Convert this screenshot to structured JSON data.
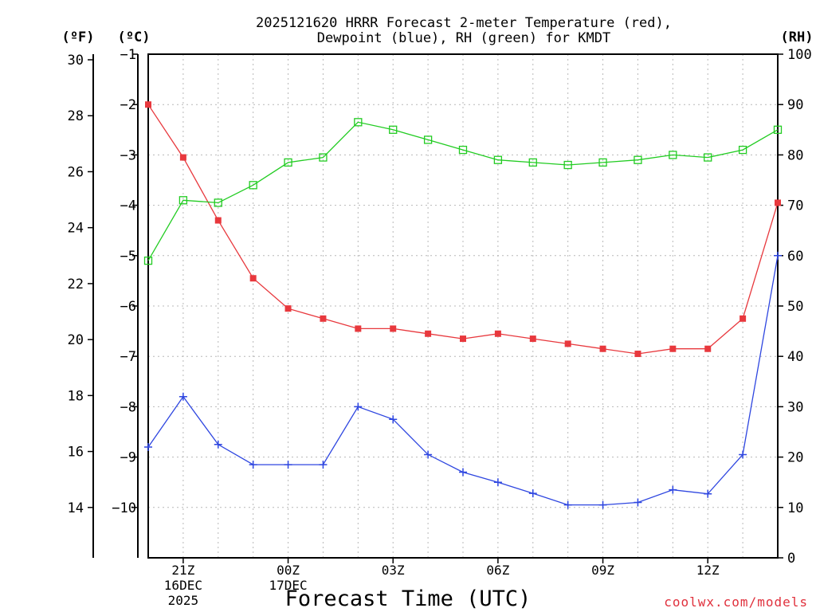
{
  "chart_data": {
    "type": "line",
    "title_lines": [
      "2025121620 HRRR Forecast 2-meter Temperature (red),",
      "Dewpoint (blue), RH (green) for KMDT"
    ],
    "xlabel": "Forecast Time (UTC)",
    "credit": "coolwx.com/models",
    "units": {
      "fahrenheit": "(ºF)",
      "celsius": "(ºC)",
      "rh": "(RH)"
    },
    "x_hours": [
      20,
      21,
      22,
      23,
      24,
      25,
      26,
      27,
      28,
      29,
      30,
      31,
      32,
      33,
      34,
      35,
      36,
      37,
      38
    ],
    "xlim": [
      20,
      38
    ],
    "x_ticks": [
      {
        "hour": 21,
        "lines": [
          "21Z",
          "16DEC",
          "2025"
        ]
      },
      {
        "hour": 24,
        "lines": [
          "00Z",
          "17DEC"
        ]
      },
      {
        "hour": 27,
        "lines": [
          "03Z"
        ]
      },
      {
        "hour": 30,
        "lines": [
          "06Z"
        ]
      },
      {
        "hour": 33,
        "lines": [
          "09Z"
        ]
      },
      {
        "hour": 36,
        "lines": [
          "12Z"
        ]
      }
    ],
    "celsius_axis": {
      "ylim": [
        -11,
        -1
      ],
      "ticks": [
        -1,
        -2,
        -3,
        -4,
        -5,
        -6,
        -7,
        -8,
        -9,
        -10
      ],
      "tick_labels": [
        "−1",
        "−2",
        "−3",
        "−4",
        "−5",
        "−6",
        "−7",
        "−8",
        "−9",
        "−10"
      ]
    },
    "fahrenheit_axis": {
      "ticks": [
        14,
        16,
        18,
        20,
        22,
        24,
        26,
        28,
        30
      ],
      "tick_labels": [
        "14",
        "16",
        "18",
        "20",
        "22",
        "24",
        "26",
        "28",
        "30"
      ]
    },
    "rh_axis": {
      "ylim": [
        0,
        100
      ],
      "ticks": [
        0,
        10,
        20,
        30,
        40,
        50,
        60,
        70,
        80,
        90,
        100
      ],
      "tick_labels": [
        "0",
        "10",
        "20",
        "30",
        "40",
        "50",
        "60",
        "70",
        "80",
        "90",
        "100"
      ]
    },
    "series": [
      {
        "name": "Temperature",
        "axis": "celsius",
        "color": "#e8383d",
        "marker": "filled-square",
        "values": [
          -2.0,
          -3.05,
          -4.3,
          -5.45,
          -6.05,
          -6.25,
          -6.45,
          -6.45,
          -6.55,
          -6.65,
          -6.55,
          -6.65,
          -6.75,
          -6.85,
          -6.95,
          -6.85,
          -6.85,
          -6.25,
          -3.95
        ]
      },
      {
        "name": "Dewpoint",
        "axis": "celsius",
        "color": "#2e46e0",
        "marker": "plus",
        "values": [
          -8.8,
          -7.8,
          -8.75,
          -9.15,
          -9.15,
          -9.15,
          -8.0,
          -8.25,
          -8.95,
          -9.3,
          -9.5,
          -9.72,
          -9.95,
          -9.95,
          -9.9,
          -9.65,
          -9.73,
          -8.95,
          -5.0
        ]
      },
      {
        "name": "RH",
        "axis": "rh",
        "color": "#22cc22",
        "marker": "open-square",
        "values": [
          59,
          71,
          70.5,
          74,
          78.5,
          79.5,
          86.5,
          85,
          83,
          81,
          79,
          78.5,
          78,
          78.5,
          79,
          80,
          79.5,
          81,
          85
        ]
      }
    ]
  }
}
